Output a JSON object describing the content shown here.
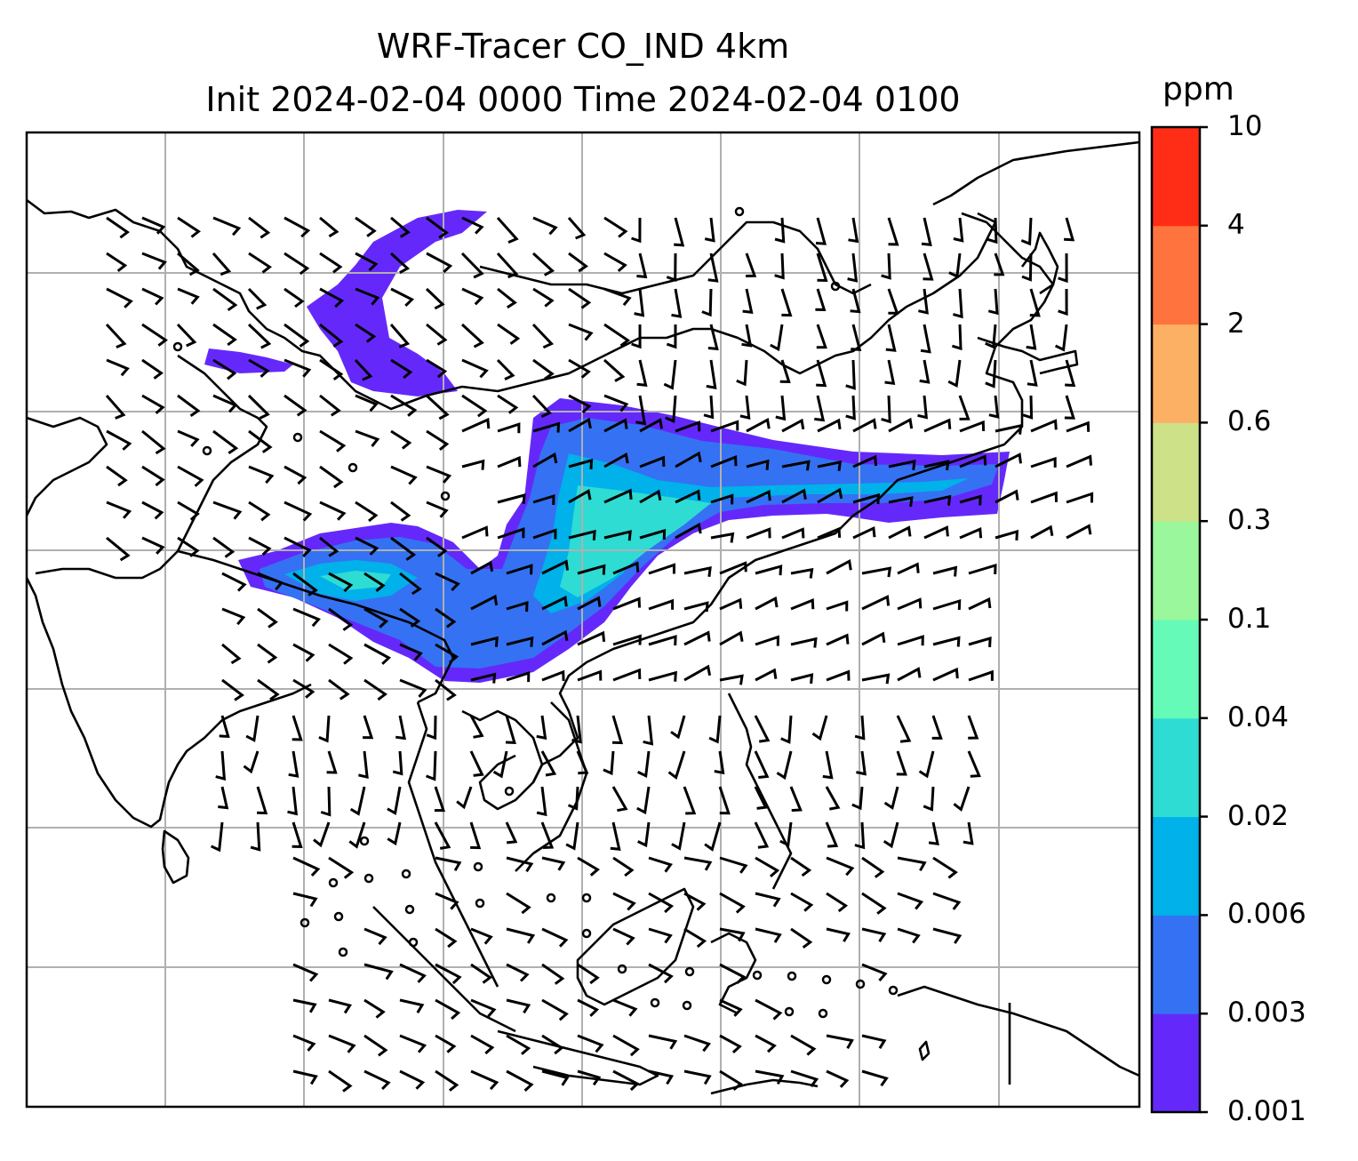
{
  "title": {
    "line1": "WRF-Tracer CO_IND 4km",
    "line2": "Init 2024-02-04 0000 Time 2024-02-04 0100"
  },
  "colorbar": {
    "unit": "ppm",
    "levels": [
      "0.001",
      "0.003",
      "0.006",
      "0.02",
      "0.04",
      "0.1",
      "0.3",
      "0.6",
      "2",
      "4",
      "10"
    ],
    "colors": [
      "#6429fa",
      "#3472f3",
      "#00b1ea",
      "#2edcd4",
      "#66fab9",
      "#9af79b",
      "#cde288",
      "#fbb064",
      "#ff733e",
      "#ff2d16"
    ]
  },
  "map": {
    "gridlines": "on",
    "coastline_color": "#000000",
    "wind_barb_color": "#000000",
    "gridline_color": "#b0b0b0"
  }
}
